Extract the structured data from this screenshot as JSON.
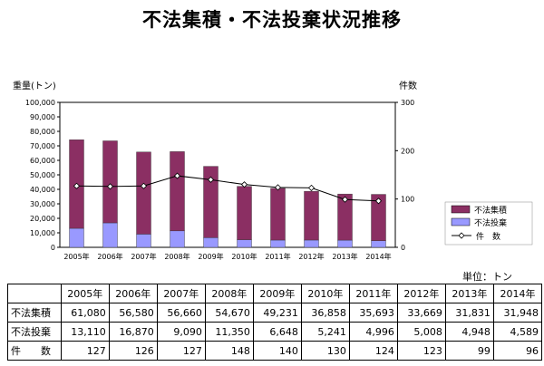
{
  "title": "不法集積・不法投棄状況推移",
  "unit_label": "単位：トン",
  "table": {
    "rows": [
      {
        "label": "不法集積",
        "values": [
          "61,080",
          "56,580",
          "56,660",
          "54,670",
          "49,231",
          "36,858",
          "35,693",
          "33,669",
          "31,831",
          "31,948"
        ]
      },
      {
        "label": "不法投棄",
        "values": [
          "13,110",
          "16,870",
          "9,090",
          "11,350",
          "6,648",
          "5,241",
          "4,996",
          "5,008",
          "4,948",
          "4,589"
        ]
      },
      {
        "label": "件　　数",
        "values": [
          "127",
          "126",
          "127",
          "148",
          "140",
          "130",
          "124",
          "123",
          "99",
          "96"
        ]
      }
    ]
  },
  "colors": {
    "accumulation": "#8b2f63",
    "dumping": "#9999ff",
    "line": "#000000",
    "marker_fill": "#ffffff"
  },
  "chart_data": {
    "type": "bar",
    "stacked": true,
    "categories": [
      "2005年",
      "2006年",
      "2007年",
      "2008年",
      "2009年",
      "2010年",
      "2011年",
      "2012年",
      "2013年",
      "2014年"
    ],
    "series": [
      {
        "name": "不法投棄",
        "axis": "left",
        "values": [
          13110,
          16870,
          9090,
          11350,
          6648,
          5241,
          4996,
          5008,
          4948,
          4589
        ]
      },
      {
        "name": "不法集積",
        "axis": "left",
        "values": [
          61080,
          56580,
          56660,
          54670,
          49231,
          36858,
          35693,
          33669,
          31831,
          31948
        ]
      },
      {
        "name": "件　数",
        "type": "line",
        "axis": "right",
        "values": [
          127,
          126,
          127,
          148,
          140,
          130,
          124,
          123,
          99,
          96
        ]
      }
    ],
    "ylabel": "重量(トン)",
    "y2label": "件数",
    "ylim": [
      0,
      100000
    ],
    "y2lim": [
      0,
      300
    ],
    "yticks": [
      "0",
      "10,000",
      "20,000",
      "30,000",
      "40,000",
      "50,000",
      "60,000",
      "70,000",
      "80,000",
      "90,000",
      "100,000"
    ],
    "y2ticks": [
      "0",
      "100",
      "200",
      "300"
    ],
    "legend": [
      "不法集積",
      "不法投棄",
      "件　数"
    ],
    "legend_position": "right",
    "grid": false
  }
}
